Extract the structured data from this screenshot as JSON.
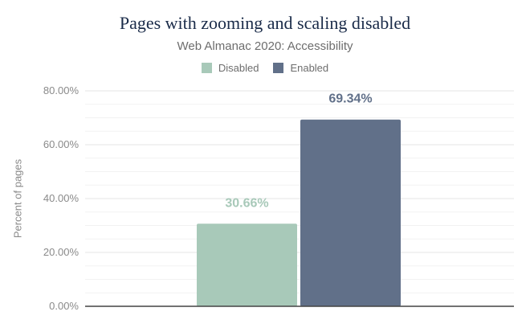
{
  "chart_data": {
    "type": "bar",
    "title": "Pages with zooming and scaling disabled",
    "subtitle": "Web Almanac 2020: Accessibility",
    "ylabel": "Percent of pages",
    "ylim": [
      0,
      80
    ],
    "yticks": [
      "0.00%",
      "20.00%",
      "40.00%",
      "60.00%",
      "80.00%"
    ],
    "grid": true,
    "legend_position": "top",
    "series": [
      {
        "name": "Disabled",
        "value": 30.66,
        "label": "30.66%",
        "color": "#a8c9b9"
      },
      {
        "name": "Enabled",
        "value": 69.34,
        "label": "69.34%",
        "color": "#617089"
      }
    ]
  }
}
